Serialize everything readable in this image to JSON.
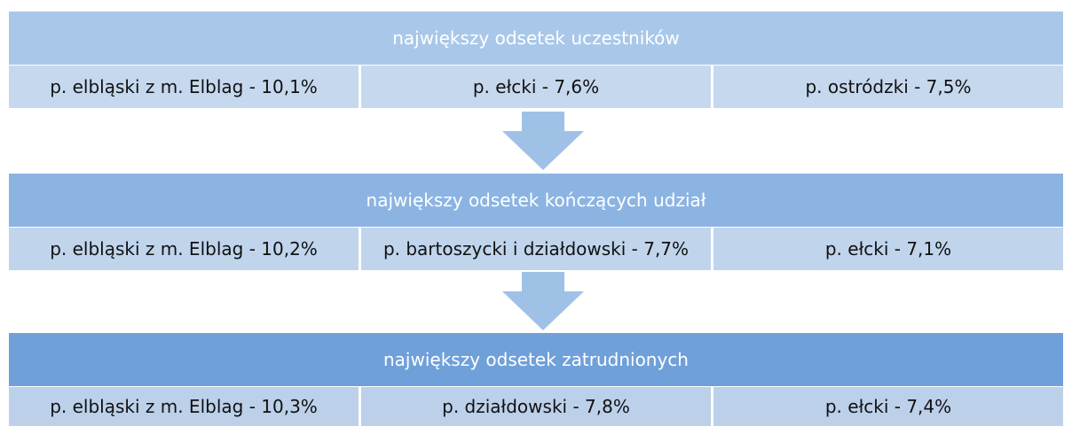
{
  "sections": [
    {
      "title": "największy odsetek uczestników",
      "items": [
        "p. elbląski z m. Elblag - 10,1%",
        "p. ełcki - 7,6%",
        "p. ostródzki - 7,5%"
      ]
    },
    {
      "title": "największy odsetek kończących udział",
      "items": [
        "p. elbląski z m. Elblag - 10,2%",
        "p. bartoszycki i działdowski - 7,7%",
        "p. ełcki - 7,1%"
      ]
    },
    {
      "title": "największy odsetek zatrudnionych",
      "items": [
        "p. elbląski z m. Elblag - 10,3%",
        "p. działdowski - 7,8%",
        "p. ełcki - 7,4%"
      ]
    }
  ]
}
